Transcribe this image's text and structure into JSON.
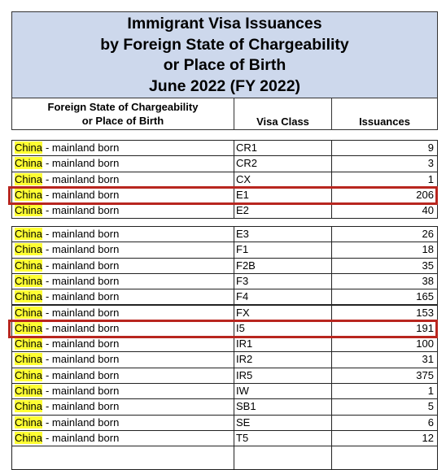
{
  "header": {
    "title": [
      "Immigrant Visa Issuances",
      "by Foreign State of Chargeability",
      "or Place of Birth",
      "June 2022 (FY 2022)"
    ]
  },
  "table": {
    "columns": [
      [
        "Foreign State of Chargeability",
        "or Place of Birth"
      ],
      "Visa Class",
      "Issuances"
    ],
    "groups": [
      [
        [
          "China",
          "- mainland born",
          "CR1",
          9
        ],
        [
          "China",
          "- mainland born",
          "CR2",
          3
        ],
        [
          "China",
          "- mainland born",
          "CX",
          1
        ],
        [
          "China",
          "- mainland born",
          "E1",
          206
        ],
        [
          "China",
          "- mainland born",
          "E2",
          40
        ]
      ],
      [
        [
          "China",
          "- mainland born",
          "E3",
          26
        ],
        [
          "China",
          "- mainland born",
          "F1",
          18
        ],
        [
          "China",
          "- mainland born",
          "F2B",
          35
        ],
        [
          "China",
          "- mainland born",
          "F3",
          38
        ],
        [
          "China",
          "- mainland born",
          "F4",
          165
        ],
        [
          "China",
          "- mainland born",
          "FX",
          153
        ],
        [
          "China",
          "- mainland born",
          "I5",
          191
        ],
        [
          "China",
          "- mainland born",
          "IR1",
          100
        ],
        [
          "China",
          "- mainland born",
          "IR2",
          31
        ],
        [
          "China",
          "- mainland born",
          "IR5",
          375
        ],
        [
          "China",
          "- mainland born",
          "IW",
          1
        ],
        [
          "China",
          "- mainland born",
          "SB1",
          5
        ],
        [
          "China",
          "- mainland born",
          "SE",
          6
        ],
        [
          "China",
          "- mainland born",
          "T5",
          12
        ]
      ]
    ]
  }
}
